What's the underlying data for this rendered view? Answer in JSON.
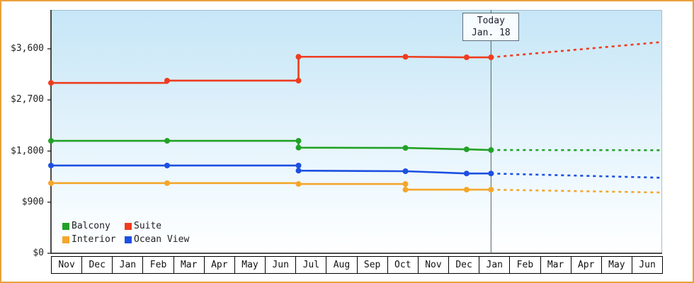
{
  "frame": {
    "border_color": "#e8a23c"
  },
  "today": {
    "line1": "Today",
    "line2": "Jan. 18"
  },
  "chart_data": {
    "type": "line",
    "title": "",
    "x_labels": [
      "Nov",
      "Dec",
      "Jan",
      "Feb",
      "Mar",
      "Apr",
      "May",
      "Jun",
      "Jul",
      "Aug",
      "Sep",
      "Oct",
      "Nov",
      "Dec",
      "Jan",
      "Feb",
      "Mar",
      "Apr",
      "May",
      "Jun"
    ],
    "x_range": [
      0,
      20
    ],
    "x_unit": "month columns, 0 = start of first Nov",
    "ylim": [
      0,
      4300
    ],
    "y_ticks": [
      {
        "value": 0,
        "label": "$0"
      },
      {
        "value": 900,
        "label": "$900"
      },
      {
        "value": 1800,
        "label": "$1,800"
      },
      {
        "value": 2700,
        "label": "$2,700"
      },
      {
        "value": 3600,
        "label": "$3,600"
      }
    ],
    "grid": false,
    "legend_position": "bottom-left",
    "today_x": 14.4,
    "today_label": "Today Jan. 18",
    "series": [
      {
        "name": "Balcony",
        "color": "#21a126",
        "points_solid": [
          [
            0,
            1980
          ],
          [
            8.1,
            1980
          ],
          [
            8.1,
            1860
          ],
          [
            11.6,
            1855
          ],
          [
            13.6,
            1830
          ],
          [
            14.4,
            1818
          ]
        ],
        "points_markers": [
          [
            0,
            1980
          ],
          [
            3.8,
            1980
          ],
          [
            8.1,
            1980
          ],
          [
            8.1,
            1860
          ],
          [
            11.6,
            1855
          ],
          [
            13.6,
            1830
          ],
          [
            14.4,
            1818
          ]
        ],
        "points_projection": [
          [
            14.4,
            1818
          ],
          [
            20,
            1815
          ]
        ]
      },
      {
        "name": "Suite",
        "color": "#ef3c1f",
        "points_solid": [
          [
            0,
            3000
          ],
          [
            3.8,
            3000
          ],
          [
            3.8,
            3040
          ],
          [
            8.1,
            3040
          ],
          [
            8.1,
            3460
          ],
          [
            11.6,
            3460
          ],
          [
            13.6,
            3450
          ],
          [
            14.4,
            3450
          ]
        ],
        "points_markers": [
          [
            0,
            3000
          ],
          [
            3.8,
            3040
          ],
          [
            8.1,
            3040
          ],
          [
            8.1,
            3460
          ],
          [
            11.6,
            3460
          ],
          [
            13.6,
            3450
          ],
          [
            14.4,
            3450
          ]
        ],
        "points_projection": [
          [
            14.4,
            3450
          ],
          [
            20,
            3720
          ]
        ]
      },
      {
        "name": "Interior",
        "color": "#f5a62b",
        "points_solid": [
          [
            0,
            1235
          ],
          [
            8.1,
            1235
          ],
          [
            8.1,
            1220
          ],
          [
            11.6,
            1220
          ],
          [
            11.6,
            1120
          ],
          [
            13.6,
            1120
          ],
          [
            14.4,
            1120
          ]
        ],
        "points_markers": [
          [
            0,
            1235
          ],
          [
            3.8,
            1235
          ],
          [
            8.1,
            1220
          ],
          [
            11.6,
            1220
          ],
          [
            11.6,
            1120
          ],
          [
            13.6,
            1120
          ],
          [
            14.4,
            1120
          ]
        ],
        "points_projection": [
          [
            14.4,
            1120
          ],
          [
            20,
            1070
          ]
        ]
      },
      {
        "name": "Ocean View",
        "color": "#1d4fe1",
        "points_solid": [
          [
            0,
            1545
          ],
          [
            8.1,
            1545
          ],
          [
            8.1,
            1455
          ],
          [
            11.6,
            1445
          ],
          [
            13.6,
            1405
          ],
          [
            14.4,
            1405
          ]
        ],
        "points_markers": [
          [
            0,
            1545
          ],
          [
            3.8,
            1545
          ],
          [
            8.1,
            1545
          ],
          [
            8.1,
            1455
          ],
          [
            11.6,
            1445
          ],
          [
            13.6,
            1405
          ],
          [
            14.4,
            1405
          ]
        ],
        "points_projection": [
          [
            14.4,
            1405
          ],
          [
            20,
            1330
          ]
        ]
      }
    ]
  }
}
